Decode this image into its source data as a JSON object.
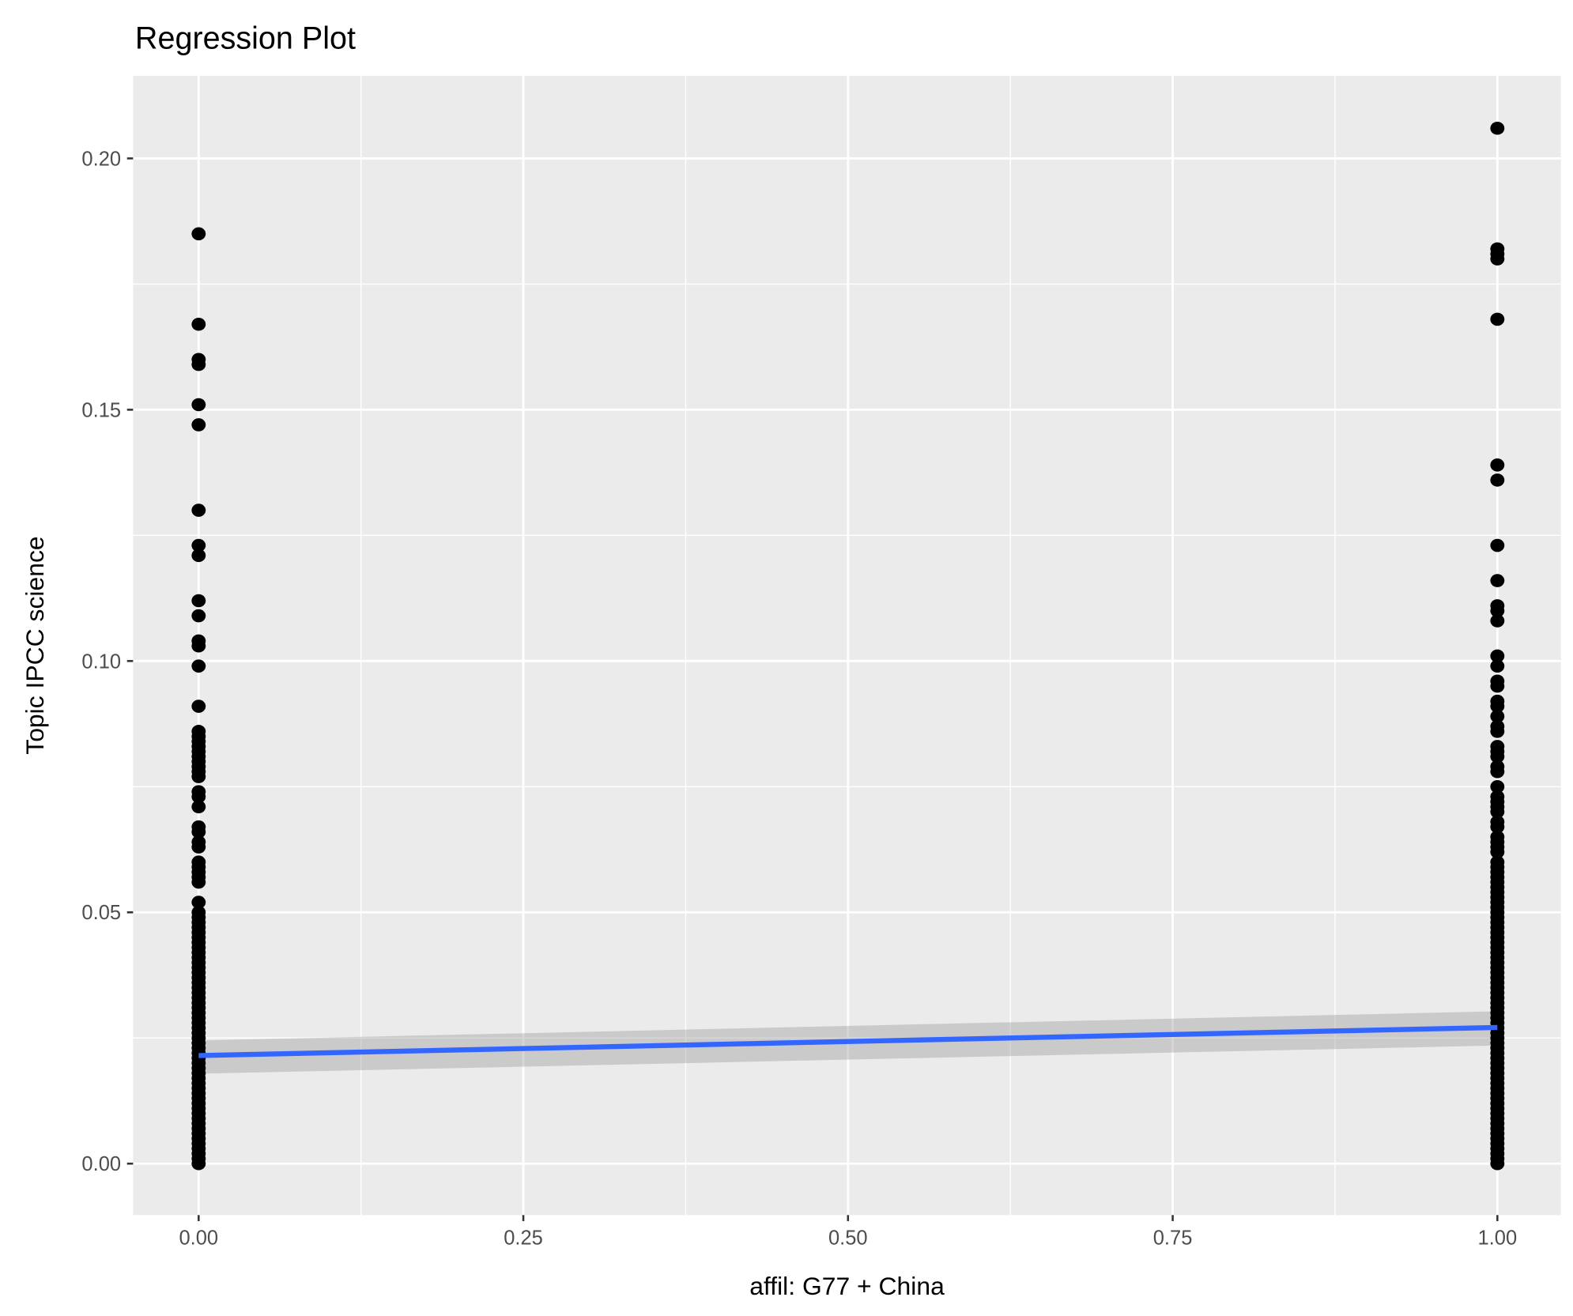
{
  "chart_data": {
    "type": "scatter",
    "title": "Regression Plot",
    "xlabel": "affil: G77 + China",
    "ylabel": "Topic IPCC science",
    "xlim": [
      -0.05,
      1.05
    ],
    "ylim": [
      -0.01,
      0.215
    ],
    "xticks": [
      "0.00",
      "0.25",
      "0.50",
      "0.75",
      "1.00"
    ],
    "yticks": [
      "0.00",
      "0.05",
      "0.10",
      "0.15",
      "0.20"
    ],
    "grid": true,
    "colors": {
      "panel": "#ebebeb",
      "grid": "#ffffff",
      "points": "#000000",
      "line": "#3366ff",
      "band": "#c8c8c8"
    },
    "series": [
      {
        "x": 0,
        "y": [
          0.185,
          0.167,
          0.16,
          0.159,
          0.151,
          0.147,
          0.13,
          0.123,
          0.121,
          0.112,
          0.109,
          0.104,
          0.103,
          0.099,
          0.091,
          0.086,
          0.085,
          0.084,
          0.083,
          0.082,
          0.081,
          0.08,
          0.079,
          0.078,
          0.077,
          0.074,
          0.073,
          0.071,
          0.067,
          0.066,
          0.064,
          0.063,
          0.06,
          0.059,
          0.058,
          0.057,
          0.056,
          0.052,
          0.05,
          0.049,
          0.048,
          0.047,
          0.046,
          0.045,
          0.044,
          0.043,
          0.042,
          0.041,
          0.04,
          0.039,
          0.038,
          0.037,
          0.036,
          0.035,
          0.034,
          0.033,
          0.032,
          0.031,
          0.03,
          0.029,
          0.028,
          0.027,
          0.026,
          0.025,
          0.024,
          0.023,
          0.022,
          0.021,
          0.02,
          0.019,
          0.018,
          0.017,
          0.016,
          0.015,
          0.014,
          0.013,
          0.012,
          0.011,
          0.01,
          0.009,
          0.008,
          0.007,
          0.006,
          0.005,
          0.004,
          0.003,
          0.002,
          0.001,
          0.0
        ]
      },
      {
        "x": 1,
        "y": [
          0.206,
          0.182,
          0.181,
          0.18,
          0.168,
          0.139,
          0.136,
          0.123,
          0.116,
          0.111,
          0.11,
          0.108,
          0.101,
          0.099,
          0.096,
          0.095,
          0.092,
          0.091,
          0.089,
          0.087,
          0.086,
          0.083,
          0.082,
          0.081,
          0.079,
          0.078,
          0.075,
          0.073,
          0.072,
          0.071,
          0.07,
          0.068,
          0.067,
          0.065,
          0.064,
          0.063,
          0.062,
          0.06,
          0.059,
          0.058,
          0.057,
          0.056,
          0.055,
          0.054,
          0.053,
          0.052,
          0.051,
          0.05,
          0.049,
          0.048,
          0.047,
          0.046,
          0.045,
          0.044,
          0.043,
          0.042,
          0.041,
          0.04,
          0.039,
          0.038,
          0.037,
          0.036,
          0.035,
          0.034,
          0.033,
          0.032,
          0.031,
          0.03,
          0.029,
          0.028,
          0.027,
          0.026,
          0.025,
          0.024,
          0.023,
          0.022,
          0.021,
          0.02,
          0.019,
          0.018,
          0.017,
          0.016,
          0.015,
          0.014,
          0.013,
          0.012,
          0.011,
          0.01,
          0.009,
          0.008,
          0.007,
          0.006,
          0.005,
          0.004,
          0.003,
          0.002,
          0.001,
          0.0
        ]
      }
    ],
    "regression": {
      "x": [
        0,
        1
      ],
      "y": [
        0.0215,
        0.0271
      ],
      "ci_low": [
        0.0179,
        0.0235
      ],
      "ci_high": [
        0.0245,
        0.0303
      ]
    }
  }
}
